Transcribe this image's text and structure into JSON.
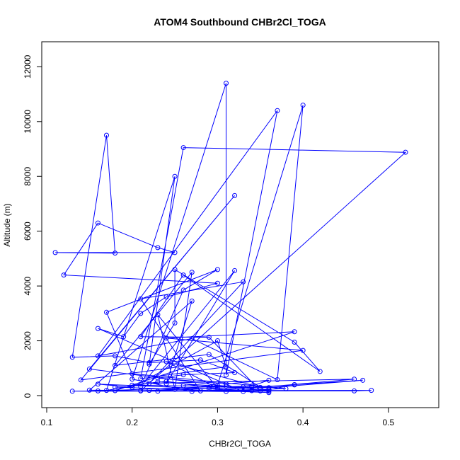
{
  "chart_data": {
    "type": "line",
    "title": "ATOM4 Southbound CHBr2Cl_TOGA",
    "xlabel": "CHBr2Cl_TOGA",
    "ylabel": "Altitude (m)",
    "xlim": [
      0.1,
      0.52
    ],
    "ylim": [
      0,
      12500
    ],
    "xticks": [
      0.1,
      0.2,
      0.3,
      0.4,
      0.5
    ],
    "yticks": [
      0,
      2000,
      4000,
      6000,
      8000,
      10000,
      12000
    ],
    "grid": false,
    "legend": "none",
    "marker": "open-circle",
    "color": "#0000ff",
    "series": [
      {
        "points": [
          [
            0.22,
            190
          ],
          [
            0.25,
            230
          ],
          [
            0.29,
            250
          ],
          [
            0.34,
            180
          ],
          [
            0.36,
            210
          ],
          [
            0.39,
            400
          ],
          [
            0.47,
            560
          ],
          [
            0.36,
            290
          ],
          [
            0.26,
            360
          ],
          [
            0.33,
            320
          ],
          [
            0.2,
            380
          ],
          [
            0.24,
            520
          ],
          [
            0.29,
            300
          ],
          [
            0.34,
            350
          ],
          [
            0.36,
            560
          ],
          [
            0.31,
            430
          ],
          [
            0.23,
            640
          ],
          [
            0.26,
            760
          ],
          [
            0.32,
            840
          ],
          [
            0.28,
            1300
          ],
          [
            0.22,
            1200
          ],
          [
            0.18,
            1450
          ],
          [
            0.13,
            1400
          ],
          [
            0.17,
            9500
          ],
          [
            0.18,
            5200
          ],
          [
            0.11,
            5220
          ],
          [
            0.25,
            5220
          ],
          [
            0.23,
            5400
          ],
          [
            0.16,
            6300
          ],
          [
            0.12,
            4400
          ],
          [
            0.3,
            4100
          ],
          [
            0.24,
            3600
          ],
          [
            0.21,
            3000
          ],
          [
            0.19,
            2150
          ],
          [
            0.16,
            2450
          ],
          [
            0.33,
            150
          ],
          [
            0.36,
            210
          ],
          [
            0.23,
            500
          ],
          [
            0.17,
            190
          ],
          [
            0.25,
            8000
          ],
          [
            0.22,
            1150
          ],
          [
            0.25,
            2650
          ],
          [
            0.25,
            4600
          ],
          [
            0.39,
            1950
          ],
          [
            0.42,
            880
          ],
          [
            0.26,
            4400
          ],
          [
            0.21,
            2150
          ],
          [
            0.29,
            2130
          ],
          [
            0.35,
            170
          ],
          [
            0.16,
            420
          ],
          [
            0.2,
            300
          ],
          [
            0.3,
            2000
          ],
          [
            0.31,
            1050
          ],
          [
            0.21,
            620
          ],
          [
            0.26,
            9050
          ],
          [
            0.52,
            8880
          ],
          [
            0.21,
            170
          ],
          [
            0.46,
            170
          ],
          [
            0.48,
            190
          ],
          [
            0.21,
            180
          ],
          [
            0.34,
            310
          ],
          [
            0.39,
            390
          ],
          [
            0.27,
            150
          ],
          [
            0.2,
            600
          ],
          [
            0.31,
            11400
          ],
          [
            0.31,
            750
          ],
          [
            0.37,
            10400
          ],
          [
            0.16,
            1450
          ],
          [
            0.27,
            2080
          ],
          [
            0.37,
            580
          ],
          [
            0.4,
            10600
          ],
          [
            0.3,
            370
          ],
          [
            0.23,
            160
          ],
          [
            0.16,
            170
          ],
          [
            0.31,
            340
          ],
          [
            0.15,
            970
          ],
          [
            0.32,
            7300
          ],
          [
            0.14,
            570
          ],
          [
            0.4,
            1650
          ],
          [
            0.24,
            2100
          ],
          [
            0.39,
            2330
          ],
          [
            0.18,
            180
          ],
          [
            0.13,
            160
          ],
          [
            0.36,
            160
          ],
          [
            0.31,
            150
          ],
          [
            0.15,
            200
          ],
          [
            0.27,
            3450
          ],
          [
            0.24,
            440
          ],
          [
            0.32,
            4560
          ],
          [
            0.21,
            330
          ],
          [
            0.26,
            3850
          ],
          [
            0.3,
            4600
          ],
          [
            0.17,
            3040
          ],
          [
            0.2,
            800
          ],
          [
            0.38,
            250
          ],
          [
            0.28,
            170
          ],
          [
            0.21,
            3530
          ],
          [
            0.33,
            4150
          ],
          [
            0.22,
            450
          ],
          [
            0.46,
            600
          ],
          [
            0.35,
            300
          ],
          [
            0.24,
            1240
          ],
          [
            0.3,
            270
          ],
          [
            0.23,
            2950
          ],
          [
            0.25,
            230
          ],
          [
            0.27,
            4500
          ],
          [
            0.18,
            1100
          ],
          [
            0.29,
            1500
          ],
          [
            0.36,
            110
          ],
          [
            0.18,
            310
          ]
        ]
      }
    ]
  }
}
